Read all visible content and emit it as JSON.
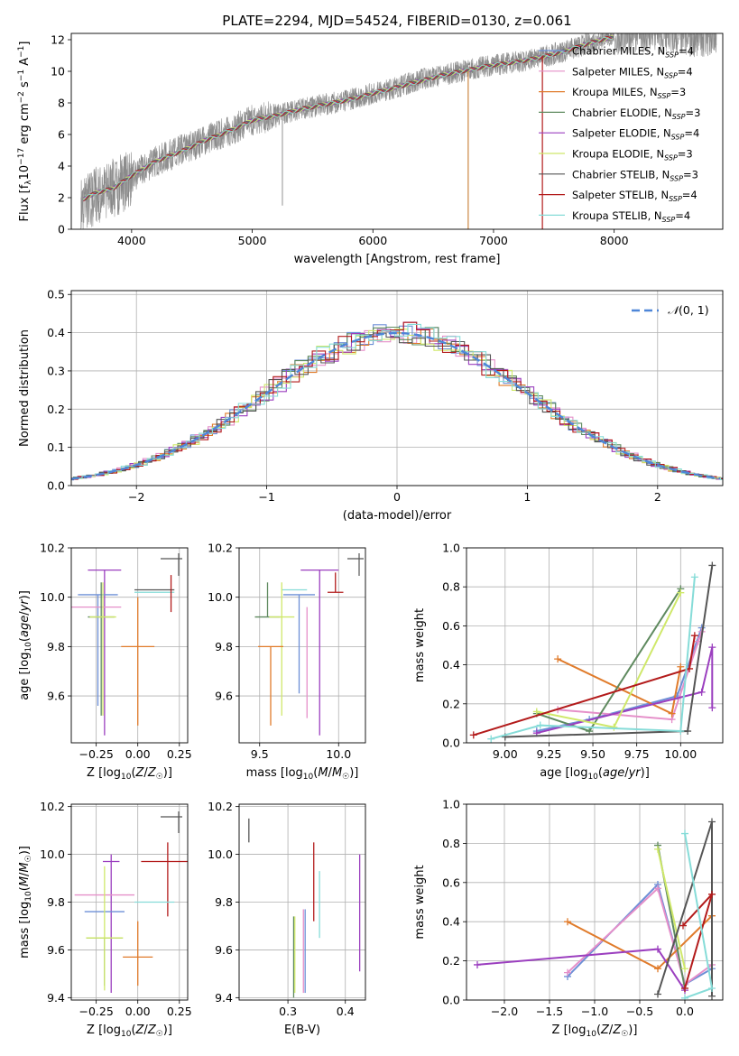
{
  "figure_title": "PLATE=2294, MJD=54524, FIBERID=0130, z=0.061",
  "colors": {
    "Chabrier MILES": "#6d8fd6",
    "Salpeter MILES": "#e58fc9",
    "Kroupa MILES": "#e07b2b",
    "Chabrier ELODIE": "#5f8a5f",
    "Salpeter ELODIE": "#9b3fbf",
    "Kroupa ELODIE": "#cfe86a",
    "Chabrier STELIB": "#555555",
    "Salpeter STELIB": "#b31b1b",
    "Kroupa STELIB": "#86dcd8",
    "gaussian": "#4e86d8"
  },
  "chart_data": [
    {
      "id": "spectrum",
      "type": "line",
      "title": "PLATE=2294, MJD=54524, FIBERID=0130, z=0.061",
      "xlabel": "wavelength [Angstrom, rest frame]",
      "xlim": [
        3500,
        8900
      ],
      "ylim": [
        0,
        12.4
      ],
      "xticks": [
        4000,
        5000,
        6000,
        7000,
        8000
      ],
      "yticks": [
        0,
        2,
        4,
        6,
        8,
        10,
        12
      ],
      "grid": false,
      "legend_position": "right",
      "legend": [
        {
          "model": "Chabrier MILES",
          "n": "4"
        },
        {
          "model": "Salpeter MILES",
          "n": "4"
        },
        {
          "model": "Kroupa MILES",
          "n": "3"
        },
        {
          "model": "Chabrier ELODIE",
          "n": "3"
        },
        {
          "model": "Salpeter ELODIE",
          "n": "4"
        },
        {
          "model": "Kroupa ELODIE",
          "n": "3"
        },
        {
          "model": "Chabrier STELIB",
          "n": "3"
        },
        {
          "model": "Salpeter STELIB",
          "n": "4"
        },
        {
          "model": "Kroupa STELIB",
          "n": "4"
        }
      ],
      "data_series": {
        "x": [
          3580,
          3700,
          3850,
          4000,
          4200,
          4400,
          4600,
          4800,
          5000,
          5200,
          5400,
          5600,
          5800,
          6000,
          6200,
          6400,
          6600,
          6800,
          7000,
          7200,
          7400,
          7600,
          7800,
          8000,
          8200,
          8400,
          8600
        ],
        "y": [
          1.5,
          2.2,
          2.6,
          3.3,
          4.3,
          5.0,
          5.6,
          6.2,
          6.9,
          7.2,
          7.6,
          7.9,
          8.2,
          8.6,
          9.0,
          9.5,
          9.8,
          10.1,
          10.4,
          10.6,
          10.9,
          11.3,
          11.8,
          12.4,
          12.6,
          12.5,
          12.3
        ]
      },
      "model_series": {
        "x": [
          3600,
          3700,
          3850,
          4000,
          4200,
          4400,
          4600,
          4800,
          5000,
          5200,
          5400,
          5600,
          5800,
          6000,
          6200,
          6400,
          6600,
          6800,
          7000,
          7200,
          7400,
          7600,
          7800,
          8000
        ],
        "y": [
          1.9,
          2.3,
          2.6,
          3.4,
          4.3,
          4.9,
          5.6,
          6.2,
          6.9,
          7.2,
          7.6,
          7.9,
          8.2,
          8.6,
          9.0,
          9.4,
          9.8,
          10.1,
          10.4,
          10.6,
          10.9,
          11.3,
          11.8,
          12.2
        ]
      }
    },
    {
      "id": "residuals",
      "type": "line",
      "xlabel": "(data-model)/error",
      "ylabel": "Normed distribution",
      "xlim": [
        -2.5,
        2.5
      ],
      "ylim": [
        0,
        0.51
      ],
      "xticks": [
        -2,
        -1,
        0,
        1,
        2
      ],
      "yticks": [
        0.0,
        0.1,
        0.2,
        0.3,
        0.4,
        0.5
      ],
      "grid": true,
      "legend_position": "top-right",
      "legend": [
        "N(0,1)"
      ],
      "gaussian": {
        "mean": 0,
        "sigma": 1
      }
    },
    {
      "id": "age_vs_Z",
      "type": "scatter",
      "xlabel": "Z [log10(Z/Z☉)]",
      "ylabel": "age [log10(age/yr)]",
      "xlim": [
        -0.4,
        0.3
      ],
      "ylim": [
        9.41,
        10.2
      ],
      "xticks": [
        -0.25,
        0.0,
        0.25
      ],
      "yticks": [
        9.6,
        9.8,
        10.0,
        10.2
      ],
      "grid": true,
      "points": [
        {
          "model": "Salpeter ELODIE",
          "x": -0.2,
          "y": 10.11,
          "xerr": 0.1,
          "yerr_low": 0.67,
          "yerr_high": 0.0
        },
        {
          "model": "Chabrier MILES",
          "x": -0.24,
          "y": 10.01,
          "xerr": 0.12,
          "yerr_low": 0.45,
          "yerr_high": 0.0
        },
        {
          "model": "Salpeter MILES",
          "x": -0.25,
          "y": 9.96,
          "xerr": 0.15,
          "yerr_low": 0.0,
          "yerr_high": 0.0
        },
        {
          "model": "Chabrier STELIB",
          "x": 0.1,
          "y": 10.03,
          "xerr": 0.12,
          "yerr_low": 0.0,
          "yerr_high": 0.0
        },
        {
          "model": "Kroupa STELIB",
          "x": 0.1,
          "y": 10.02,
          "xerr": 0.12,
          "yerr_low": 0.0,
          "yerr_high": 0.0
        },
        {
          "model": "Salpeter STELIB",
          "x": 0.2,
          "y": 10.02,
          "xerr": 0.0,
          "yerr_low": 0.08,
          "yerr_high": 0.07
        },
        {
          "model": "Chabrier ELODIE",
          "x": -0.22,
          "y": 9.92,
          "xerr": 0.08,
          "yerr_low": 0.4,
          "yerr_high": 0.14
        },
        {
          "model": "Kroupa ELODIE",
          "x": -0.21,
          "y": 9.92,
          "xerr": 0.08,
          "yerr_low": 0.4,
          "yerr_high": 0.14
        },
        {
          "model": "Kroupa MILES",
          "x": 0.0,
          "y": 9.8,
          "xerr": 0.1,
          "yerr_low": 0.32,
          "yerr_high": 0.2
        }
      ]
    },
    {
      "id": "age_vs_mass",
      "type": "scatter",
      "xlabel": "mass [log10(M/M☉)]",
      "xlim": [
        9.37,
        10.17
      ],
      "ylim": [
        9.41,
        10.2
      ],
      "xticks": [
        9.5,
        10.0
      ],
      "yticks": [
        9.6,
        9.8,
        10.0,
        10.2
      ],
      "grid": true,
      "points": [
        {
          "model": "Salpeter ELODIE",
          "x": 9.88,
          "y": 10.11,
          "xerr": 0.12,
          "yerr_low": 0.67,
          "yerr_high": 0.0
        },
        {
          "model": "Chabrier MILES",
          "x": 9.75,
          "y": 10.01,
          "xerr": 0.1,
          "yerr_low": 0.4,
          "yerr_high": 0.0
        },
        {
          "model": "Salpeter MILES",
          "x": 9.8,
          "y": 9.96,
          "xerr": 0.0,
          "yerr_low": 0.45,
          "yerr_high": 0.0
        },
        {
          "model": "Kroupa STELIB",
          "x": 9.72,
          "y": 10.03,
          "xerr": 0.08,
          "yerr_low": 0.0,
          "yerr_high": 0.0
        },
        {
          "model": "Salpeter STELIB",
          "x": 9.98,
          "y": 10.02,
          "xerr": 0.05,
          "yerr_low": 0.0,
          "yerr_high": 0.08
        },
        {
          "model": "Chabrier ELODIE",
          "x": 9.55,
          "y": 9.92,
          "xerr": 0.08,
          "yerr_low": 0.0,
          "yerr_high": 0.14
        },
        {
          "model": "Kroupa ELODIE",
          "x": 9.64,
          "y": 9.92,
          "xerr": 0.08,
          "yerr_low": 0.4,
          "yerr_high": 0.14
        },
        {
          "model": "Kroupa MILES",
          "x": 9.57,
          "y": 9.8,
          "xerr": 0.08,
          "yerr_low": 0.32,
          "yerr_high": 0.0
        }
      ]
    },
    {
      "id": "mass_weight_vs_age",
      "type": "line",
      "xlabel": "age [log10(age/yr)]",
      "ylabel": "mass weight",
      "xlim": [
        8.78,
        10.24
      ],
      "ylim": [
        0,
        1
      ],
      "xticks": [
        9.0,
        9.25,
        9.5,
        9.75,
        10.0
      ],
      "yticks": [
        0.0,
        0.2,
        0.4,
        0.6,
        0.8,
        1.0
      ],
      "grid": true,
      "series": [
        {
          "model": "Chabrier MILES",
          "x": [
            9.18,
            9.48,
            9.98,
            10.12
          ],
          "y": [
            0.06,
            0.12,
            0.24,
            0.59
          ]
        },
        {
          "model": "Salpeter MILES",
          "x": [
            9.3,
            9.95,
            10.1,
            10.12
          ],
          "y": [
            0.17,
            0.12,
            0.52,
            0.57
          ]
        },
        {
          "model": "Kroupa MILES",
          "x": [
            9.3,
            9.95,
            10.0
          ],
          "y": [
            0.43,
            0.15,
            0.39
          ]
        },
        {
          "model": "Chabrier ELODIE",
          "x": [
            9.18,
            9.48,
            10.0
          ],
          "y": [
            0.15,
            0.06,
            0.79
          ]
        },
        {
          "model": "Salpeter ELODIE",
          "x": [
            9.18,
            10.12,
            10.18,
            10.18
          ],
          "y": [
            0.05,
            0.26,
            0.49,
            0.18
          ]
        },
        {
          "model": "Kroupa ELODIE",
          "x": [
            9.18,
            9.62,
            10.0
          ],
          "y": [
            0.16,
            0.08,
            0.77
          ]
        },
        {
          "model": "Chabrier STELIB",
          "x": [
            9.0,
            10.04,
            10.18
          ],
          "y": [
            0.03,
            0.06,
            0.91
          ]
        },
        {
          "model": "Salpeter STELIB",
          "x": [
            8.82,
            10.05,
            10.08
          ],
          "y": [
            0.04,
            0.38,
            0.55
          ]
        },
        {
          "model": "Kroupa STELIB",
          "x": [
            8.92,
            9.2,
            10.0,
            10.08
          ],
          "y": [
            0.02,
            0.09,
            0.06,
            0.85
          ]
        }
      ]
    },
    {
      "id": "mass_vs_Z",
      "type": "scatter",
      "xlabel": "Z [log10(Z/Z☉)]",
      "ylabel": "mass [log10(M/M☉)]",
      "xlim": [
        -0.4,
        0.3
      ],
      "ylim": [
        9.39,
        10.21
      ],
      "xticks": [
        -0.25,
        0.0,
        0.25
      ],
      "yticks": [
        9.4,
        9.6,
        9.8,
        10.0,
        10.2
      ],
      "grid": true,
      "points": [
        {
          "model": "Salpeter ELODIE",
          "x": -0.16,
          "y": 9.97,
          "xerr": 0.05,
          "yerr_low": 0.55,
          "yerr_high": 0.03
        },
        {
          "model": "Salpeter STELIB",
          "x": 0.18,
          "y": 9.97,
          "xerr": 0.16,
          "yerr_low": 0.23,
          "yerr_high": 0.08
        },
        {
          "model": "Salpeter MILES",
          "x": -0.2,
          "y": 9.83,
          "xerr": 0.18,
          "yerr_low": 0.0,
          "yerr_high": 0.0
        },
        {
          "model": "Kroupa STELIB",
          "x": 0.1,
          "y": 9.8,
          "xerr": 0.12,
          "yerr_low": 0.0,
          "yerr_high": 0.0
        },
        {
          "model": "Chabrier MILES",
          "x": -0.2,
          "y": 9.76,
          "xerr": 0.12,
          "yerr_low": 0.0,
          "yerr_high": 0.0
        },
        {
          "model": "Chabrier ELODIE",
          "x": -0.2,
          "y": 9.65,
          "xerr": 0.11,
          "yerr_low": 0.2,
          "yerr_high": 0.0
        },
        {
          "model": "Kroupa ELODIE",
          "x": -0.2,
          "y": 9.65,
          "xerr": 0.11,
          "yerr_low": 0.22,
          "yerr_high": 0.3
        },
        {
          "model": "Kroupa MILES",
          "x": 0.0,
          "y": 9.57,
          "xerr": 0.09,
          "yerr_low": 0.12,
          "yerr_high": 0.15
        }
      ]
    },
    {
      "id": "mass_vs_ebv",
      "type": "scatter",
      "xlabel": "E(B-V)",
      "xlim": [
        0.215,
        0.435
      ],
      "ylim": [
        9.39,
        10.21
      ],
      "xticks": [
        0.3,
        0.4
      ],
      "yticks": [
        9.4,
        9.6,
        9.8,
        10.0,
        10.2
      ],
      "grid": true,
      "points": [
        {
          "model": "Chabrier STELIB",
          "x": 0.232,
          "y": 10.1,
          "xerr": 0.0,
          "yerr_low": 0.05,
          "yerr_high": 0.05
        },
        {
          "model": "Chabrier ELODIE",
          "x": 0.31,
          "y": 9.6,
          "xerr": 0.0,
          "yerr_low": 0.2,
          "yerr_high": 0.14
        },
        {
          "model": "Kroupa ELODIE",
          "x": 0.312,
          "y": 9.58,
          "xerr": 0.0,
          "yerr_low": 0.16,
          "yerr_high": 0.16
        },
        {
          "model": "Salpeter MILES",
          "x": 0.327,
          "y": 9.62,
          "xerr": 0.0,
          "yerr_low": 0.2,
          "yerr_high": 0.15
        },
        {
          "model": "Chabrier MILES",
          "x": 0.33,
          "y": 9.62,
          "xerr": 0.0,
          "yerr_low": 0.2,
          "yerr_high": 0.15
        },
        {
          "model": "Salpeter STELIB",
          "x": 0.345,
          "y": 9.9,
          "xerr": 0.0,
          "yerr_low": 0.18,
          "yerr_high": 0.15
        },
        {
          "model": "Kroupa STELIB",
          "x": 0.355,
          "y": 9.8,
          "xerr": 0.0,
          "yerr_low": 0.15,
          "yerr_high": 0.13
        },
        {
          "model": "Salpeter ELODIE",
          "x": 0.425,
          "y": 9.75,
          "xerr": 0.0,
          "yerr_low": 0.24,
          "yerr_high": 0.25
        }
      ]
    },
    {
      "id": "mass_weight_vs_Z",
      "type": "line",
      "xlabel": "Z [log10(Z/Z☉)]",
      "ylabel": "mass weight",
      "xlim": [
        -2.42,
        0.42
      ],
      "ylim": [
        0,
        1
      ],
      "xticks": [
        -2.0,
        -1.5,
        -1.0,
        -0.5,
        0.0
      ],
      "yticks": [
        0.0,
        0.2,
        0.4,
        0.6,
        0.8,
        1.0
      ],
      "grid": true,
      "series": [
        {
          "model": "Chabrier MILES",
          "x": [
            -1.3,
            -0.3,
            0.0,
            0.3
          ],
          "y": [
            0.12,
            0.59,
            0.08,
            0.16
          ]
        },
        {
          "model": "Salpeter MILES",
          "x": [
            -1.3,
            -0.3,
            0.0,
            0.3
          ],
          "y": [
            0.14,
            0.57,
            0.08,
            0.18
          ]
        },
        {
          "model": "Kroupa MILES",
          "x": [
            -1.3,
            -0.3,
            0.3
          ],
          "y": [
            0.4,
            0.16,
            0.43
          ]
        },
        {
          "model": "Chabrier ELODIE",
          "x": [
            -0.3,
            0.0
          ],
          "y": [
            0.79,
            0.06
          ]
        },
        {
          "model": "Salpeter ELODIE",
          "x": [
            -2.3,
            -0.3,
            0.0
          ],
          "y": [
            0.18,
            0.26,
            0.05
          ]
        },
        {
          "model": "Kroupa ELODIE",
          "x": [
            -0.3,
            0.0
          ],
          "y": [
            0.77,
            0.16
          ]
        },
        {
          "model": "Chabrier STELIB",
          "x": [
            -0.3,
            0.3,
            0.3
          ],
          "y": [
            0.03,
            0.91,
            0.02
          ]
        },
        {
          "model": "Salpeter STELIB",
          "x": [
            -0.02,
            0.3,
            0.0
          ],
          "y": [
            0.38,
            0.54,
            0.06
          ]
        },
        {
          "model": "Kroupa STELIB",
          "x": [
            0.0,
            0.3,
            0.0
          ],
          "y": [
            0.85,
            0.06,
            0.01
          ]
        }
      ]
    }
  ]
}
